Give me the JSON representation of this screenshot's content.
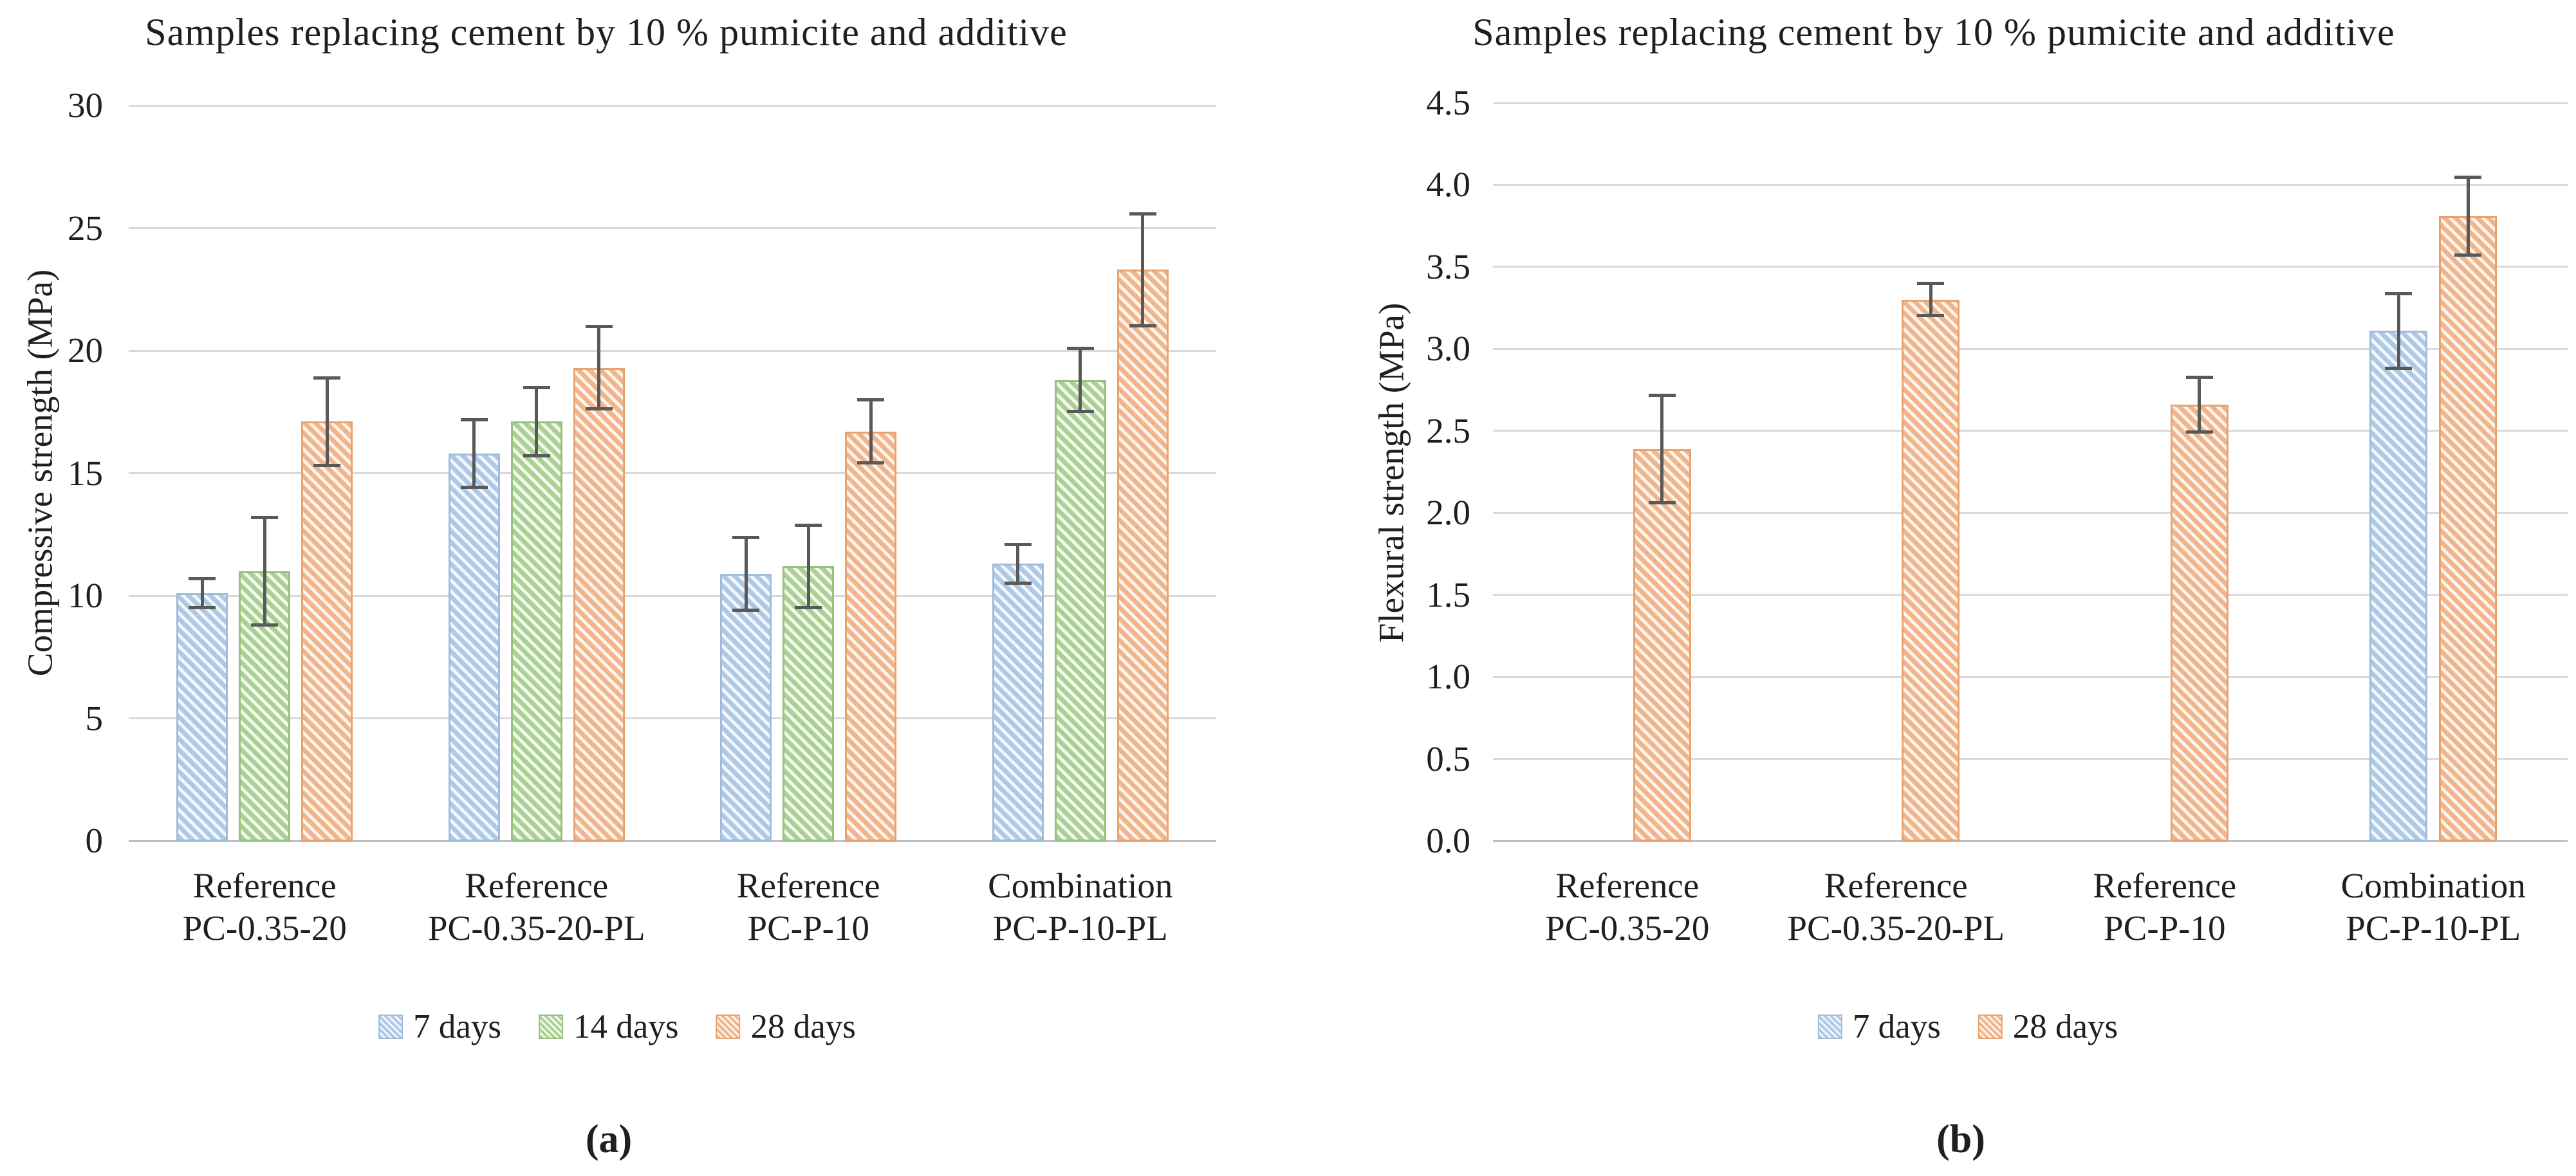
{
  "styles": {
    "background": "#ffffff",
    "text_color": "#1f1f1f",
    "gridline_color": "#d9d9d9",
    "axis_line_color": "#bfbfbf",
    "error_bar_color": "#595959"
  },
  "chart_data": [
    {
      "type": "bar",
      "panel": "a",
      "caption": "(a)",
      "title": "Samples replacing cement by 10 % pumicite and additive",
      "ylabel": "Compressive strength (MPa)",
      "xlabel": "",
      "ylim": [
        0,
        30
      ],
      "ytick_step": 5,
      "ytick_decimals": 0,
      "grid": true,
      "legend_position": "bottom",
      "error_bars": true,
      "categories": [
        "Reference\nPC-0.35-20",
        "Reference\nPC-0.35-20-PL",
        "Reference\nPC-P-10",
        "Combination\nPC-P-10-PL"
      ],
      "series": [
        {
          "name": "7 days",
          "color": "#aec9e5",
          "border_color": "#9fbcdb",
          "fill_bg": "#f3f7fb",
          "values": [
            10.1,
            15.8,
            10.9,
            11.3
          ],
          "errors": [
            0.6,
            1.4,
            1.5,
            0.8
          ]
        },
        {
          "name": "14 days",
          "color": "#abd093",
          "border_color": "#95c17c",
          "fill_bg": "#f4f9f0",
          "values": [
            11.0,
            17.1,
            11.2,
            18.8
          ],
          "errors": [
            2.2,
            1.4,
            1.7,
            1.3
          ]
        },
        {
          "name": "28 days",
          "color": "#f0b58c",
          "border_color": "#e9a370",
          "fill_bg": "#fdf4ec",
          "values": [
            17.1,
            19.3,
            16.7,
            23.3
          ],
          "errors": [
            1.8,
            1.7,
            1.3,
            2.3
          ]
        }
      ]
    },
    {
      "type": "bar",
      "panel": "b",
      "caption": "(b)",
      "title": "Samples replacing cement by 10 % pumicite and additive",
      "ylabel": "Flexural strength (MPa)",
      "xlabel": "",
      "ylim": [
        0,
        4.5
      ],
      "ytick_step": 0.5,
      "ytick_decimals": 1,
      "grid": true,
      "legend_position": "bottom",
      "error_bars": true,
      "categories": [
        "Reference\nPC-0.35-20",
        "Reference\nPC-0.35-20-PL",
        "Reference\nPC-P-10",
        "Combination\nPC-P-10-PL"
      ],
      "series": [
        {
          "name": "7 days",
          "color": "#aec9e5",
          "border_color": "#9fbcdb",
          "fill_bg": "#f3f7fb",
          "values": [
            null,
            null,
            null,
            3.11
          ],
          "errors": [
            null,
            null,
            null,
            0.23
          ]
        },
        {
          "name": "28 days",
          "color": "#f0b58c",
          "border_color": "#e9a370",
          "fill_bg": "#fdf4ec",
          "values": [
            2.39,
            3.3,
            2.66,
            3.81
          ],
          "errors": [
            0.33,
            0.1,
            0.17,
            0.24
          ]
        }
      ]
    }
  ]
}
